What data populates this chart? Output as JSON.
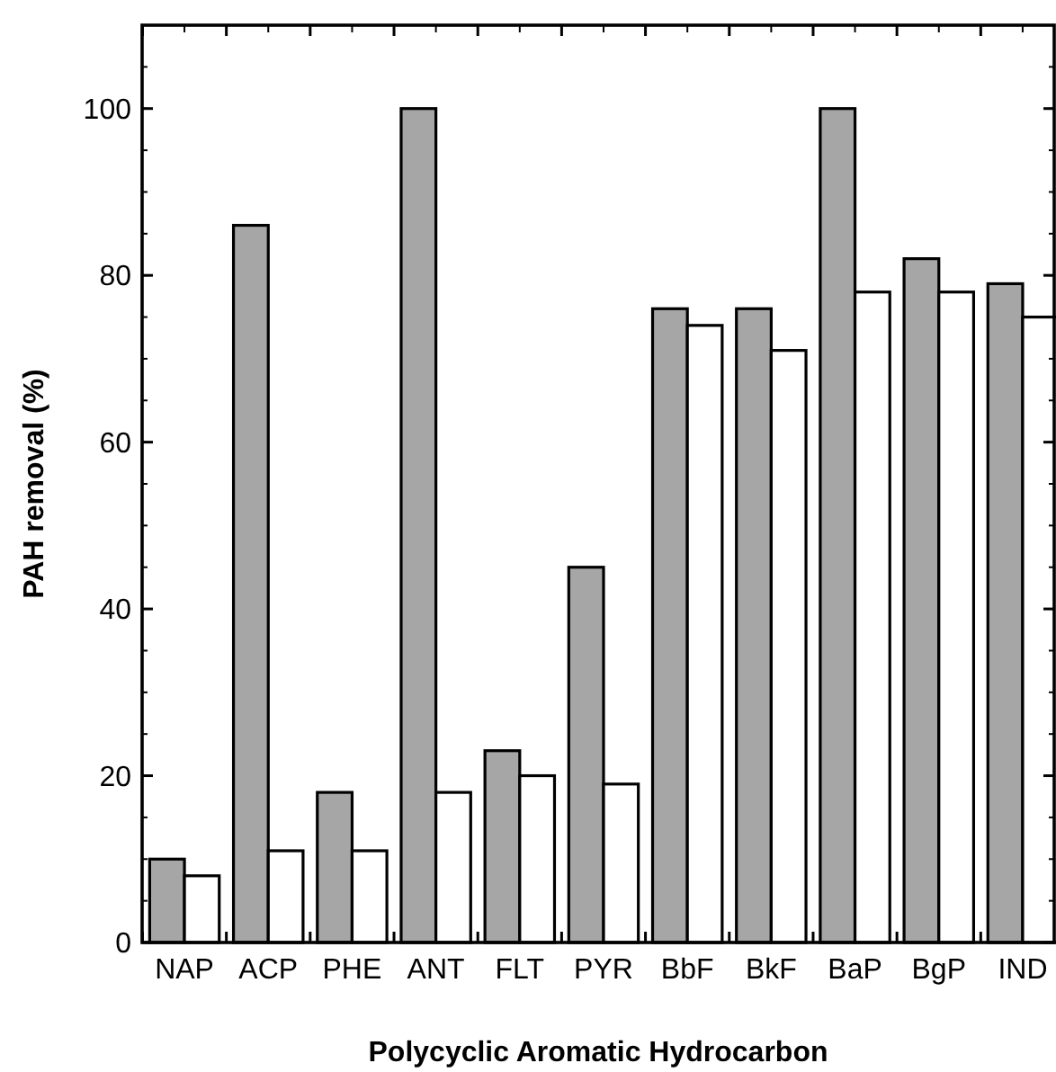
{
  "chart_data": {
    "type": "bar",
    "xlabel": "Polycyclic Aromatic Hydrocarbon",
    "ylabel": "PAH removal (%)",
    "categories": [
      "NAP",
      "ACP",
      "PHE",
      "ANT",
      "FLT",
      "PYR",
      "BbF",
      "BkF",
      "BaP",
      "BgP",
      "IND"
    ],
    "series": [
      {
        "color": "#a6a6a6",
        "values": [
          10,
          86,
          18,
          100,
          23,
          45,
          76,
          76,
          100,
          82,
          79
        ]
      },
      {
        "color": "#ffffff",
        "values": [
          8,
          11,
          11,
          18,
          20,
          19,
          74,
          71,
          78,
          78,
          75
        ]
      }
    ],
    "ylim": [
      0,
      110
    ],
    "yticks": [
      0,
      20,
      40,
      60,
      80,
      100
    ]
  }
}
